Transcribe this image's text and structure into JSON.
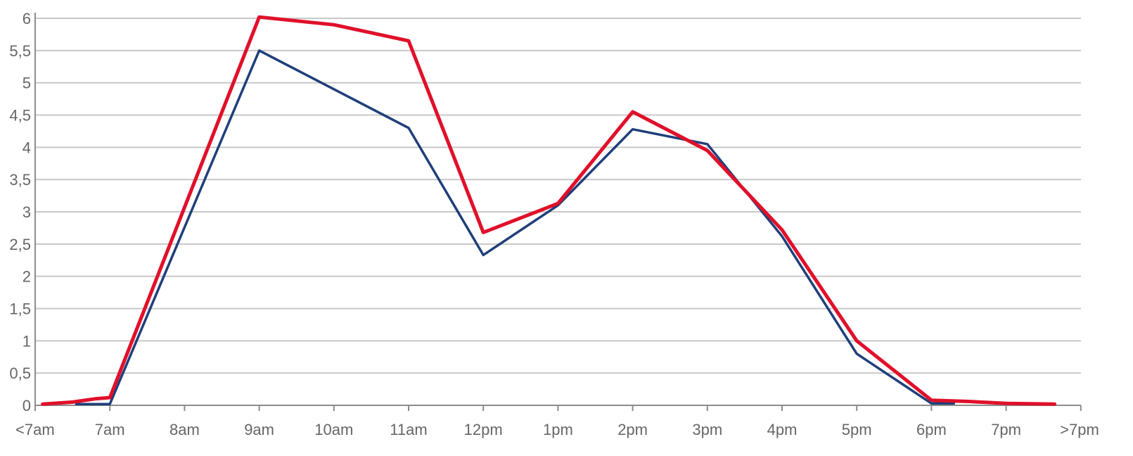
{
  "chart_data": {
    "type": "line",
    "categories": [
      "<7am",
      "7am",
      "8am",
      "9am",
      "10am",
      "11am",
      "12pm",
      "1pm",
      "2pm",
      "3pm",
      "4pm",
      "5pm",
      "6pm",
      "7pm",
      ">7pm"
    ],
    "y_ticks": [
      "0",
      "0,5",
      "1",
      "1,5",
      "2",
      "2,5",
      "3",
      "3,5",
      "4",
      "4,5",
      "5",
      "5,5",
      "6"
    ],
    "ylim": [
      0,
      6
    ],
    "grid": true,
    "series": [
      {
        "color": "#1f3f7a",
        "points": [
          {
            "x": 0.55,
            "y": 0.02
          },
          {
            "x": 1.0,
            "y": 0.02
          },
          {
            "x": 3.0,
            "y": 5.5
          },
          {
            "x": 5.0,
            "y": 4.3
          },
          {
            "x": 6.0,
            "y": 2.33
          },
          {
            "x": 7.0,
            "y": 3.1
          },
          {
            "x": 8.0,
            "y": 4.28
          },
          {
            "x": 9.0,
            "y": 4.05
          },
          {
            "x": 10.0,
            "y": 2.62
          },
          {
            "x": 11.0,
            "y": 0.8
          },
          {
            "x": 12.0,
            "y": 0.03
          },
          {
            "x": 12.3,
            "y": 0.03
          }
        ]
      },
      {
        "color": "#e0102a",
        "points": [
          {
            "x": 0.1,
            "y": 0.02
          },
          {
            "x": 0.5,
            "y": 0.05
          },
          {
            "x": 0.8,
            "y": 0.1
          },
          {
            "x": 1.0,
            "y": 0.12
          },
          {
            "x": 3.0,
            "y": 6.02
          },
          {
            "x": 4.0,
            "y": 5.9
          },
          {
            "x": 5.0,
            "y": 5.65
          },
          {
            "x": 6.0,
            "y": 2.68
          },
          {
            "x": 7.0,
            "y": 3.13
          },
          {
            "x": 8.0,
            "y": 4.55
          },
          {
            "x": 9.0,
            "y": 3.95
          },
          {
            "x": 10.0,
            "y": 2.72
          },
          {
            "x": 11.0,
            "y": 1.0
          },
          {
            "x": 12.0,
            "y": 0.08
          },
          {
            "x": 12.5,
            "y": 0.06
          },
          {
            "x": 13.0,
            "y": 0.03
          },
          {
            "x": 13.65,
            "y": 0.02
          }
        ]
      }
    ]
  },
  "colors": {
    "grid": "#c8c8c8",
    "axis": "#8c8c8c",
    "tick_text": "#666666"
  }
}
